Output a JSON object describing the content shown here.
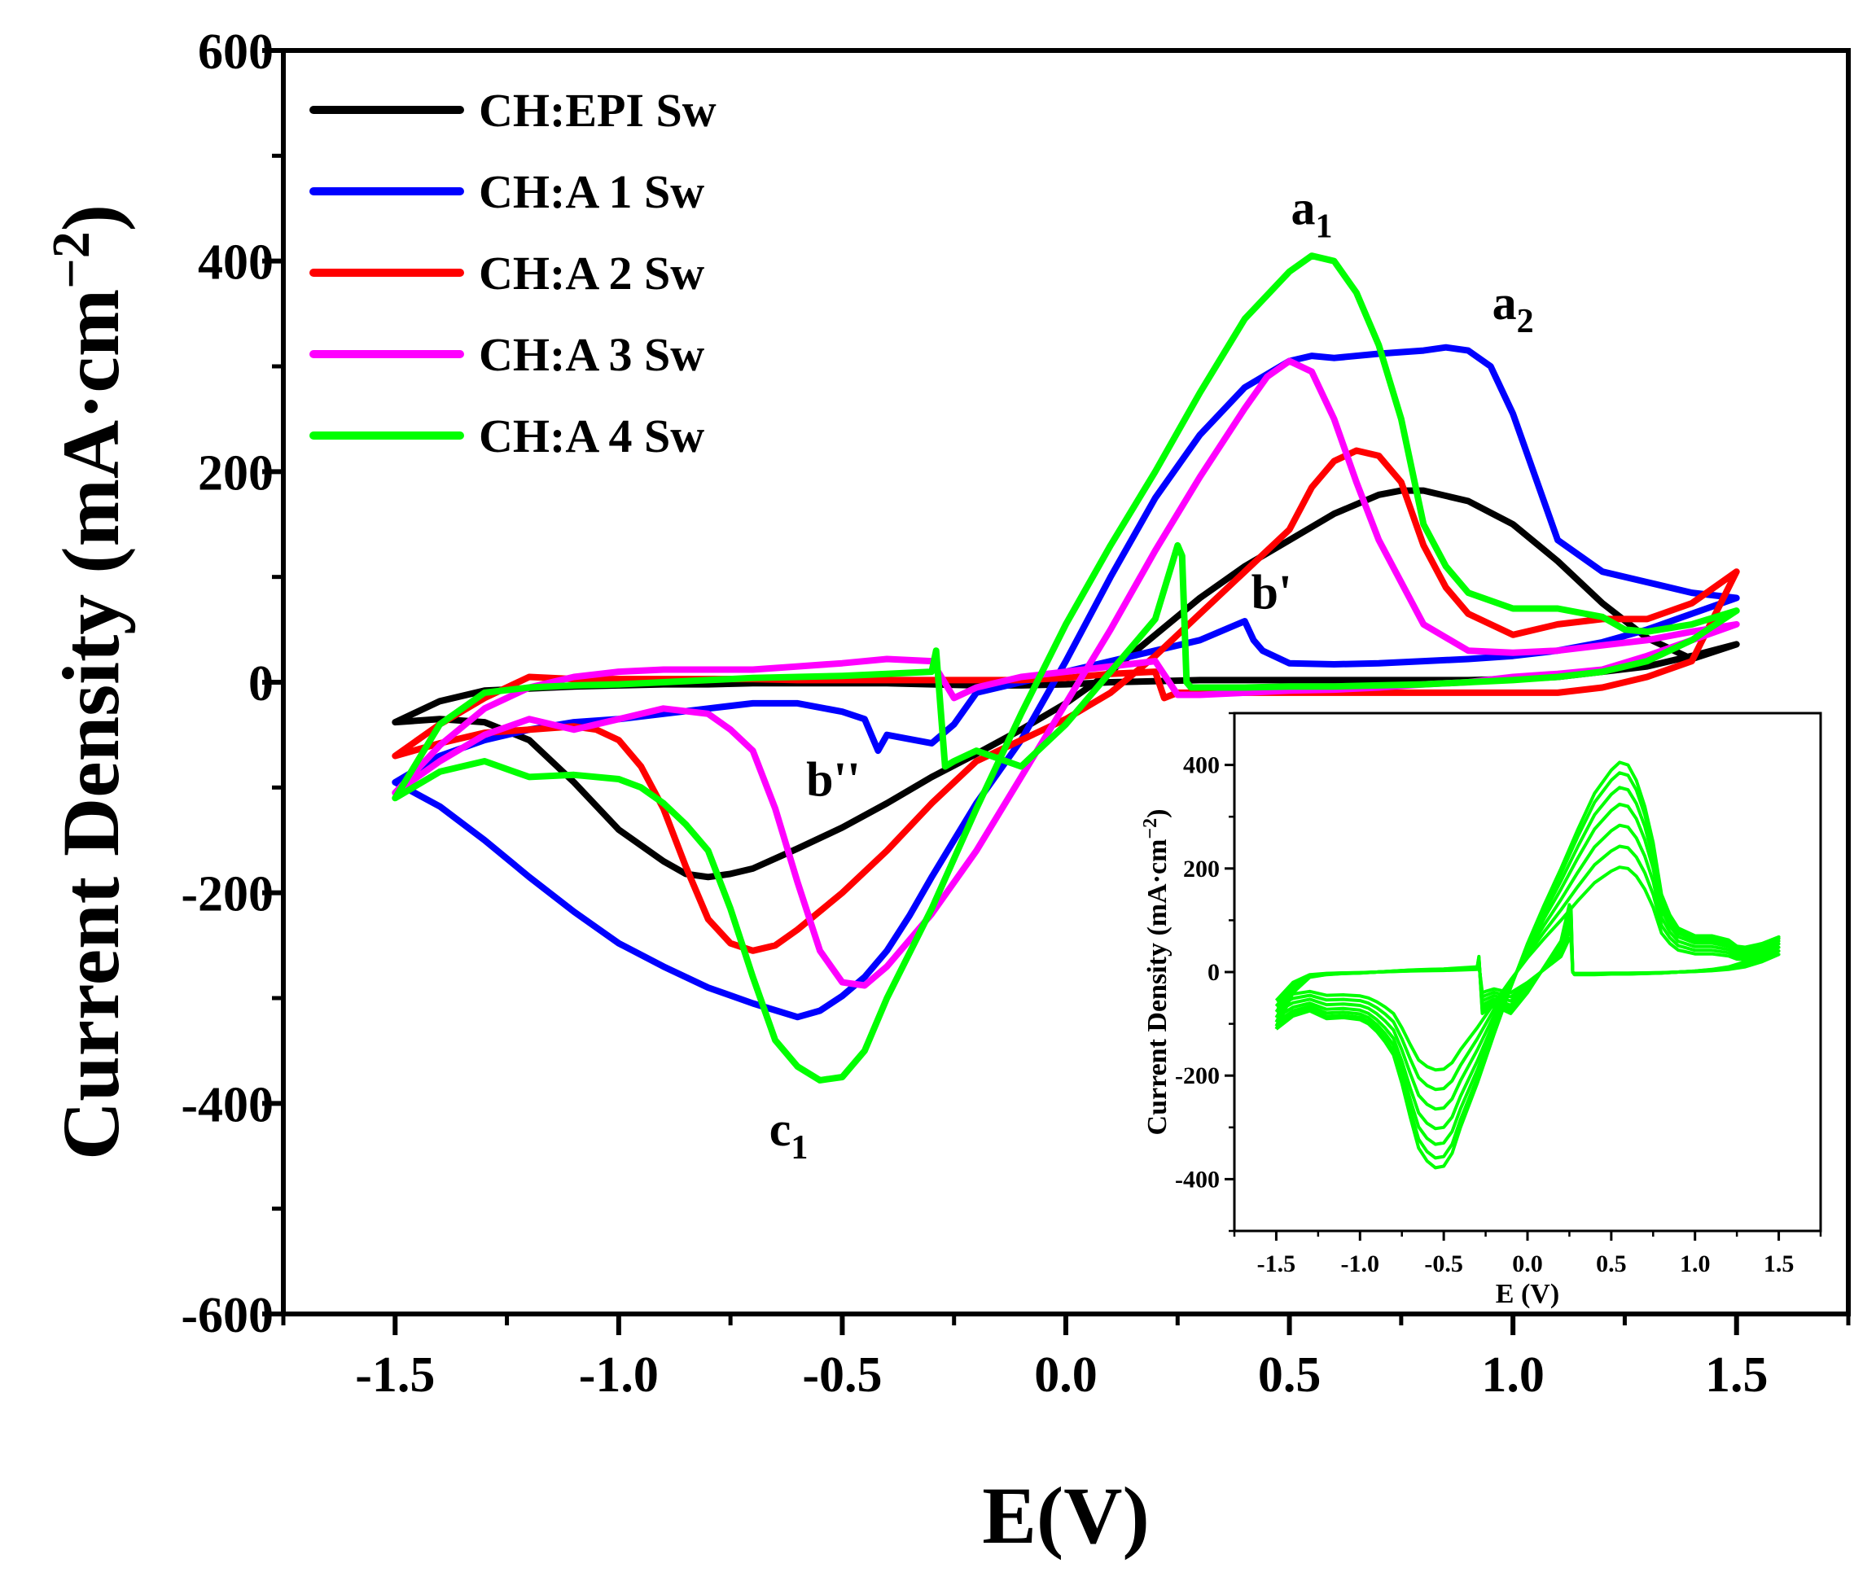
{
  "chart_data": [
    {
      "type": "line",
      "role": "main",
      "xlabel": "E(V)",
      "ylabel": "Current Density (mA·cm⁻²)",
      "ylabel_main": "Current Density (mA·cm",
      "ylabel_sup": "−2",
      "ylabel_close": ")",
      "xlim": [
        -1.75,
        1.75
      ],
      "ylim": [
        -600,
        600
      ],
      "xticks": [
        -1.5,
        -1.0,
        -0.5,
        0.0,
        0.5,
        1.0,
        1.5
      ],
      "xtick_labels": [
        "-1.5",
        "-1.0",
        "-0.5",
        "0.0",
        "0.5",
        "1.0",
        "1.5"
      ],
      "yticks": [
        -600,
        -400,
        -200,
        0,
        200,
        400,
        600
      ],
      "ytick_labels": [
        "-600",
        "-400",
        "-200",
        "0",
        "200",
        "400",
        "600"
      ],
      "legend_position": "top-left",
      "series": [
        {
          "name": "CH:EPI Sw",
          "color": "#000000",
          "x": [
            -1.5,
            -1.4,
            -1.3,
            -1.2,
            -1.1,
            -1.0,
            -0.9,
            -0.85,
            -0.8,
            -0.75,
            -0.7,
            -0.6,
            -0.5,
            -0.4,
            -0.3,
            -0.2,
            -0.1,
            0.0,
            0.1,
            0.2,
            0.3,
            0.4,
            0.5,
            0.6,
            0.7,
            0.75,
            0.8,
            0.9,
            1.0,
            1.1,
            1.2,
            1.3,
            1.4,
            1.5,
            1.4,
            1.3,
            1.2,
            1.1,
            1.0,
            0.9,
            0.8,
            0.7,
            0.6,
            0.5,
            0.4,
            0.3,
            0.2,
            0.1,
            0.0,
            -0.1,
            -0.2,
            -0.3,
            -0.4,
            -0.5,
            -0.6,
            -0.7,
            -0.8,
            -0.9,
            -1.0,
            -1.1,
            -1.2,
            -1.3,
            -1.4,
            -1.5
          ],
          "y": [
            -38,
            -35,
            -38,
            -55,
            -95,
            -140,
            -170,
            -182,
            -185,
            -182,
            -177,
            -158,
            -138,
            -115,
            -90,
            -68,
            -45,
            -20,
            10,
            45,
            80,
            110,
            135,
            160,
            178,
            182,
            182,
            172,
            150,
            115,
            75,
            42,
            22,
            36,
            25,
            15,
            10,
            5,
            3,
            2,
            2,
            2,
            2,
            2,
            2,
            2,
            1,
            0,
            -2,
            -3,
            -3,
            -2,
            -1,
            -1,
            -1,
            -1,
            -2,
            -2,
            -3,
            -4,
            -6,
            -8,
            -18,
            -38
          ]
        },
        {
          "name": "CH:A 1 Sw",
          "color": "#0000ff",
          "x": [
            -1.5,
            -1.4,
            -1.3,
            -1.2,
            -1.1,
            -1.0,
            -0.9,
            -0.8,
            -0.7,
            -0.6,
            -0.55,
            -0.5,
            -0.45,
            -0.4,
            -0.35,
            -0.3,
            -0.25,
            -0.2,
            -0.1,
            0.0,
            0.1,
            0.2,
            0.3,
            0.4,
            0.5,
            0.55,
            0.6,
            0.7,
            0.8,
            0.85,
            0.9,
            0.95,
            1.0,
            1.05,
            1.1,
            1.2,
            1.3,
            1.4,
            1.5,
            1.4,
            1.3,
            1.2,
            1.1,
            1.0,
            0.9,
            0.8,
            0.7,
            0.6,
            0.5,
            0.44,
            0.42,
            0.4,
            0.3,
            0.2,
            0.1,
            0.0,
            -0.1,
            -0.2,
            -0.25,
            -0.3,
            -0.4,
            -0.42,
            -0.45,
            -0.5,
            -0.6,
            -0.7,
            -0.8,
            -0.9,
            -1.0,
            -1.1,
            -1.2,
            -1.3,
            -1.4,
            -1.5
          ],
          "y": [
            -95,
            -118,
            -150,
            -185,
            -218,
            -248,
            -270,
            -290,
            -305,
            -318,
            -312,
            -298,
            -280,
            -255,
            -222,
            -185,
            -150,
            -115,
            -55,
            20,
            100,
            175,
            235,
            280,
            305,
            310,
            308,
            312,
            315,
            318,
            315,
            300,
            255,
            195,
            135,
            105,
            95,
            85,
            80,
            65,
            50,
            38,
            30,
            25,
            22,
            20,
            18,
            17,
            18,
            30,
            40,
            58,
            40,
            30,
            20,
            10,
            0,
            -10,
            -40,
            -58,
            -50,
            -65,
            -35,
            -28,
            -20,
            -20,
            -25,
            -30,
            -35,
            -38,
            -45,
            -55,
            -70,
            -95
          ]
        },
        {
          "name": "CH:A 2 Sw",
          "color": "#ff0000",
          "x": [
            -1.5,
            -1.4,
            -1.3,
            -1.2,
            -1.1,
            -1.05,
            -1.0,
            -0.95,
            -0.9,
            -0.85,
            -0.8,
            -0.75,
            -0.7,
            -0.65,
            -0.6,
            -0.5,
            -0.4,
            -0.3,
            -0.2,
            -0.1,
            0.0,
            0.1,
            0.2,
            0.3,
            0.4,
            0.5,
            0.55,
            0.6,
            0.65,
            0.7,
            0.75,
            0.8,
            0.85,
            0.9,
            1.0,
            1.1,
            1.2,
            1.3,
            1.4,
            1.5,
            1.4,
            1.3,
            1.2,
            1.1,
            1.0,
            0.9,
            0.8,
            0.7,
            0.6,
            0.5,
            0.4,
            0.3,
            0.25,
            0.22,
            0.2,
            0.1,
            0.0,
            -0.1,
            -0.2,
            -0.3,
            -0.4,
            -0.5,
            -0.6,
            -0.7,
            -0.8,
            -0.9,
            -1.0,
            -1.1,
            -1.2,
            -1.3,
            -1.4,
            -1.5
          ],
          "y": [
            -70,
            -58,
            -48,
            -45,
            -42,
            -45,
            -55,
            -80,
            -120,
            -175,
            -225,
            -248,
            -255,
            -250,
            -235,
            -200,
            -160,
            -115,
            -75,
            -55,
            -35,
            -10,
            25,
            65,
            105,
            145,
            185,
            210,
            220,
            215,
            190,
            130,
            90,
            65,
            45,
            55,
            60,
            60,
            75,
            105,
            20,
            5,
            -5,
            -10,
            -10,
            -10,
            -10,
            -10,
            -10,
            -10,
            -10,
            -10,
            -10,
            -15,
            10,
            8,
            4,
            2,
            2,
            2,
            2,
            2,
            2,
            3,
            3,
            3,
            3,
            3,
            5,
            -15,
            -40,
            -70
          ]
        },
        {
          "name": "CH:A 3 Sw",
          "color": "#ff00ff",
          "x": [
            -1.5,
            -1.4,
            -1.3,
            -1.2,
            -1.1,
            -1.0,
            -0.9,
            -0.8,
            -0.75,
            -0.7,
            -0.65,
            -0.6,
            -0.55,
            -0.5,
            -0.45,
            -0.4,
            -0.3,
            -0.2,
            -0.1,
            0.0,
            0.1,
            0.2,
            0.3,
            0.4,
            0.45,
            0.5,
            0.55,
            0.6,
            0.65,
            0.7,
            0.8,
            0.9,
            1.0,
            1.1,
            1.2,
            1.3,
            1.4,
            1.5,
            1.4,
            1.3,
            1.2,
            1.1,
            1.0,
            0.9,
            0.8,
            0.7,
            0.6,
            0.5,
            0.4,
            0.3,
            0.25,
            0.2,
            0.1,
            0.0,
            -0.1,
            -0.2,
            -0.25,
            -0.3,
            -0.4,
            -0.5,
            -0.6,
            -0.7,
            -0.8,
            -0.9,
            -1.0,
            -1.1,
            -1.2,
            -1.3,
            -1.4,
            -1.5
          ],
          "y": [
            -105,
            -75,
            -50,
            -35,
            -45,
            -35,
            -25,
            -30,
            -45,
            -65,
            -120,
            -190,
            -255,
            -285,
            -288,
            -270,
            -220,
            -160,
            -90,
            -20,
            50,
            125,
            195,
            260,
            290,
            305,
            295,
            250,
            190,
            135,
            55,
            30,
            28,
            30,
            35,
            40,
            48,
            55,
            40,
            25,
            12,
            8,
            5,
            0,
            -2,
            -5,
            -7,
            -8,
            -10,
            -12,
            -12,
            20,
            15,
            10,
            5,
            -5,
            -15,
            20,
            22,
            18,
            15,
            12,
            12,
            12,
            10,
            5,
            -5,
            -25,
            -60,
            -105
          ]
        },
        {
          "name": "CH:A 4 Sw",
          "color": "#00ff00",
          "x": [
            -1.5,
            -1.4,
            -1.3,
            -1.2,
            -1.1,
            -1.0,
            -0.95,
            -0.9,
            -0.85,
            -0.8,
            -0.75,
            -0.7,
            -0.65,
            -0.6,
            -0.55,
            -0.5,
            -0.45,
            -0.4,
            -0.3,
            -0.2,
            -0.1,
            0.0,
            0.1,
            0.2,
            0.3,
            0.4,
            0.5,
            0.55,
            0.6,
            0.65,
            0.7,
            0.75,
            0.8,
            0.85,
            0.9,
            1.0,
            1.1,
            1.2,
            1.25,
            1.3,
            1.4,
            1.5,
            1.4,
            1.3,
            1.2,
            1.1,
            1.0,
            0.9,
            0.8,
            0.7,
            0.6,
            0.5,
            0.4,
            0.3,
            0.28,
            0.27,
            0.26,
            0.25,
            0.2,
            0.1,
            0.0,
            -0.1,
            -0.2,
            -0.25,
            -0.27,
            -0.29,
            -0.3,
            -0.4,
            -0.5,
            -0.6,
            -0.7,
            -0.8,
            -0.9,
            -1.0,
            -1.1,
            -1.2,
            -1.3,
            -1.4,
            -1.5
          ],
          "y": [
            -110,
            -85,
            -75,
            -90,
            -88,
            -92,
            -100,
            -115,
            -135,
            -160,
            -215,
            -280,
            -340,
            -365,
            -378,
            -375,
            -350,
            -300,
            -215,
            -120,
            -30,
            55,
            130,
            200,
            275,
            345,
            390,
            405,
            400,
            370,
            320,
            250,
            150,
            110,
            85,
            70,
            70,
            62,
            50,
            48,
            55,
            68,
            40,
            20,
            10,
            5,
            2,
            0,
            -2,
            -3,
            -4,
            -4,
            -5,
            -5,
            -5,
            0,
            120,
            130,
            60,
            10,
            -40,
            -80,
            -65,
            -75,
            -80,
            30,
            10,
            8,
            6,
            5,
            4,
            2,
            0,
            -2,
            -3,
            -5,
            -10,
            -40,
            -110
          ]
        }
      ],
      "annotations": [
        {
          "id": "a1",
          "base": "a",
          "sub": "1",
          "x": 0.55,
          "y": 435
        },
        {
          "id": "a2",
          "base": "a",
          "sub": "2",
          "x": 1.0,
          "y": 345
        },
        {
          "id": "b-prime",
          "text": "b'",
          "x": 0.46,
          "y": 70
        },
        {
          "id": "b-double-prime",
          "text": "b''",
          "x": -0.52,
          "y": -108
        },
        {
          "id": "c1",
          "base": "c",
          "sub": "1",
          "x": -0.62,
          "y": -440
        }
      ]
    },
    {
      "type": "line",
      "role": "inset",
      "xlabel": "E (V)",
      "ylabel_main": "Current Density (mA·cm",
      "ylabel_sup": "−2",
      "ylabel_close": ")",
      "xlim": [
        -1.75,
        1.75
      ],
      "ylim": [
        -500,
        500
      ],
      "xticks": [
        -1.5,
        -1.0,
        -0.5,
        0.0,
        0.5,
        1.0,
        1.5
      ],
      "xtick_labels": [
        "-1.5",
        "-1.0",
        "-0.5",
        "0.0",
        "0.5",
        "1.0",
        "1.5"
      ],
      "yticks": [
        -400,
        -200,
        0,
        200,
        400
      ],
      "ytick_labels": [
        "-400",
        "-200",
        "0",
        "200",
        "400"
      ],
      "color": "#00ff00",
      "cycle_scales": [
        0.5,
        0.6,
        0.7,
        0.8,
        0.88,
        0.95,
        1.0
      ]
    }
  ]
}
